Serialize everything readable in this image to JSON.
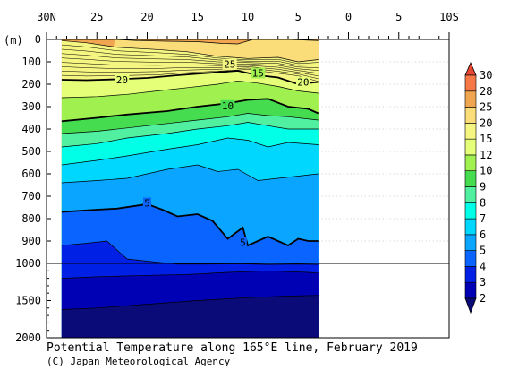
{
  "chart_data": {
    "type": "contour section",
    "title": "Potential Temperature along 165°E line, February 2019",
    "credit": "(C) Japan Meteorological Agency",
    "ylabel": "(m)",
    "x_ticks": [
      "30N",
      "25",
      "20",
      "15",
      "10",
      "5",
      "0",
      "5",
      "10S"
    ],
    "y_ticks_upper": [
      "0",
      "100",
      "200",
      "300",
      "400",
      "500",
      "600",
      "700",
      "800",
      "900",
      "1000"
    ],
    "y_ticks_lower": [
      "1500",
      "2000"
    ],
    "xlim_lat": [
      30,
      -10
    ],
    "data_lat_range": [
      28.5,
      3.0
    ],
    "ylim_depth": [
      0,
      2000
    ],
    "colorbar": {
      "levels": [
        "2",
        "3",
        "4",
        "5",
        "6",
        "7",
        "8",
        "9",
        "10",
        "12",
        "15",
        "20",
        "25",
        "28",
        "30"
      ],
      "colors": [
        "#0a0a78",
        "#0000b4",
        "#0020e6",
        "#0a64ff",
        "#0aa5ff",
        "#00d7ff",
        "#00ffe6",
        "#50f0a0",
        "#46dc50",
        "#a0f050",
        "#e6ff78",
        "#f5f582",
        "#fadc78",
        "#f0a550",
        "#f57846",
        "#e64632"
      ]
    },
    "contour_labels": [
      {
        "text": "20",
        "lat": 22.5,
        "depth": 180
      },
      {
        "text": "25",
        "lat": 11.8,
        "depth": 110
      },
      {
        "text": "15",
        "lat": 9.0,
        "depth": 150
      },
      {
        "text": "20",
        "lat": 4.5,
        "depth": 190
      },
      {
        "text": "10",
        "lat": 12.0,
        "depth": 295
      },
      {
        "text": "5",
        "lat": 20.0,
        "depth": 730
      },
      {
        "text": "5",
        "lat": 10.5,
        "depth": 905
      }
    ],
    "isotherms": [
      {
        "level": 27,
        "points": [
          [
            23.2,
            0
          ],
          [
            21,
            5
          ],
          [
            18,
            8
          ],
          [
            15,
            10
          ],
          [
            12.5,
            18
          ],
          [
            11,
            20
          ],
          [
            9.5,
            0
          ],
          [
            6,
            0
          ],
          [
            3.0,
            5
          ]
        ]
      },
      {
        "level": 25,
        "points": [
          [
            28.5,
            5
          ],
          [
            26,
            15
          ],
          [
            23,
            35
          ],
          [
            19,
            45
          ],
          [
            16,
            55
          ],
          [
            13,
            75
          ],
          [
            10,
            85
          ],
          [
            7,
            80
          ],
          [
            5,
            100
          ],
          [
            3.0,
            90
          ]
        ]
      },
      {
        "level": 20,
        "points": [
          [
            28.5,
            180
          ],
          [
            26,
            182
          ],
          [
            23,
            178
          ],
          [
            20,
            172
          ],
          [
            17,
            160
          ],
          [
            14,
            150
          ],
          [
            11,
            140
          ],
          [
            9,
            160
          ],
          [
            7,
            170
          ],
          [
            5,
            200
          ],
          [
            3.0,
            190
          ]
        ]
      },
      {
        "level": 15,
        "points": [
          [
            28.5,
            260
          ],
          [
            25,
            255
          ],
          [
            22,
            245
          ],
          [
            19,
            230
          ],
          [
            16,
            215
          ],
          [
            13,
            200
          ],
          [
            11,
            185
          ],
          [
            9,
            195
          ],
          [
            7,
            210
          ],
          [
            5,
            230
          ],
          [
            3.0,
            240
          ]
        ]
      },
      {
        "level": 10,
        "points": [
          [
            28.5,
            365
          ],
          [
            25,
            350
          ],
          [
            22,
            335
          ],
          [
            18,
            320
          ],
          [
            15,
            300
          ],
          [
            12,
            285
          ],
          [
            10,
            270
          ],
          [
            8,
            265
          ],
          [
            6,
            300
          ],
          [
            4,
            310
          ],
          [
            3.0,
            330
          ]
        ]
      },
      {
        "level": 9,
        "points": [
          [
            28.5,
            420
          ],
          [
            25,
            410
          ],
          [
            22,
            395
          ],
          [
            18,
            375
          ],
          [
            15,
            360
          ],
          [
            12,
            345
          ],
          [
            10,
            330
          ],
          [
            8,
            340
          ],
          [
            6,
            345
          ],
          [
            3.0,
            360
          ]
        ]
      },
      {
        "level": 8,
        "points": [
          [
            28.5,
            480
          ],
          [
            25,
            465
          ],
          [
            22,
            440
          ],
          [
            18,
            420
          ],
          [
            15,
            400
          ],
          [
            12,
            385
          ],
          [
            10,
            370
          ],
          [
            8,
            385
          ],
          [
            6,
            400
          ],
          [
            3.0,
            400
          ]
        ]
      },
      {
        "level": 7,
        "points": [
          [
            28.5,
            560
          ],
          [
            25,
            540
          ],
          [
            22,
            520
          ],
          [
            18,
            490
          ],
          [
            15,
            470
          ],
          [
            12,
            440
          ],
          [
            10,
            450
          ],
          [
            8,
            480
          ],
          [
            6,
            460
          ],
          [
            3.0,
            470
          ]
        ]
      },
      {
        "level": 6,
        "points": [
          [
            28.5,
            640
          ],
          [
            25,
            630
          ],
          [
            22,
            620
          ],
          [
            18,
            580
          ],
          [
            15,
            560
          ],
          [
            13,
            590
          ],
          [
            11,
            580
          ],
          [
            9,
            630
          ],
          [
            7,
            620
          ],
          [
            3.0,
            600
          ]
        ]
      },
      {
        "level": 5,
        "points": [
          [
            28.5,
            770
          ],
          [
            25,
            760
          ],
          [
            23,
            755
          ],
          [
            20,
            735
          ],
          [
            18.5,
            760
          ],
          [
            17,
            790
          ],
          [
            15,
            780
          ],
          [
            13.5,
            810
          ],
          [
            12,
            890
          ],
          [
            10.5,
            840
          ],
          [
            10,
            920
          ],
          [
            8,
            880
          ],
          [
            6,
            920
          ],
          [
            5,
            890
          ],
          [
            4,
            900
          ],
          [
            3.0,
            900
          ]
        ]
      },
      {
        "level": 4,
        "points": [
          [
            28.5,
            920
          ],
          [
            26,
            910
          ],
          [
            24,
            900
          ],
          [
            22,
            980
          ],
          [
            20,
            990
          ],
          [
            17,
            1010
          ],
          [
            14,
            1010
          ],
          [
            11,
            1005
          ],
          [
            8,
            1015
          ],
          [
            5,
            1010
          ],
          [
            3.0,
            1015
          ]
        ]
      },
      {
        "level": 3,
        "points": [
          [
            28.5,
            1200
          ],
          [
            25,
            1180
          ],
          [
            20,
            1160
          ],
          [
            16,
            1150
          ],
          [
            12,
            1120
          ],
          [
            8,
            1100
          ],
          [
            4,
            1120
          ],
          [
            3.0,
            1130
          ]
        ]
      },
      {
        "level": 2.5,
        "points": [
          [
            28.5,
            1620
          ],
          [
            25,
            1600
          ],
          [
            20,
            1550
          ],
          [
            15,
            1500
          ],
          [
            10,
            1460
          ],
          [
            6,
            1440
          ],
          [
            3.0,
            1430
          ]
        ]
      }
    ]
  }
}
